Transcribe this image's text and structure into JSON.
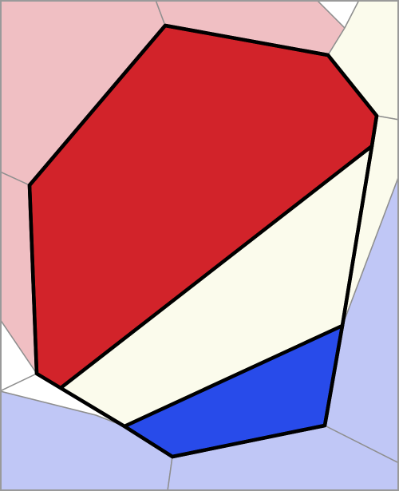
{
  "colors": {
    "red": "#d2232a",
    "red_light": "#f0bfc3",
    "cream": "#fbfbec",
    "blue": "#284bea",
    "blue_light": "#c0c7f6",
    "white": "#ffffff",
    "border": "#000000",
    "edge": "#8f8f8f"
  },
  "board": {
    "regions": [
      {
        "id": "n-top-left",
        "color": "red_light"
      },
      {
        "id": "n-top-mid",
        "color": "red_light"
      },
      {
        "id": "n-top-right-white",
        "color": "white"
      },
      {
        "id": "n-right-cream",
        "color": "cream"
      },
      {
        "id": "n-left-red",
        "color": "red_light"
      },
      {
        "id": "n-left-white",
        "color": "white"
      },
      {
        "id": "n-bottom-left-blue",
        "color": "blue_light"
      },
      {
        "id": "n-bottom-mid-blue",
        "color": "blue_light"
      },
      {
        "id": "n-right-blue",
        "color": "blue_light"
      },
      {
        "id": "n-bottom-right-blue",
        "color": "blue_light"
      },
      {
        "id": "n-left-wedge-white",
        "color": "white"
      },
      {
        "id": "piece-red",
        "color": "red"
      },
      {
        "id": "piece-cream",
        "color": "cream"
      },
      {
        "id": "piece-blue",
        "color": "blue"
      }
    ]
  }
}
